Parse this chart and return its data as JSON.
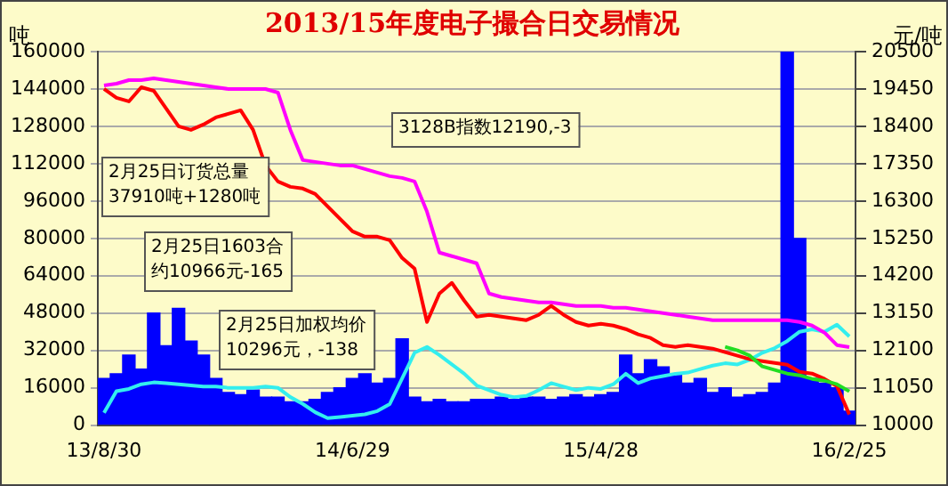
{
  "chart_data": {
    "type": "bar",
    "title": "2013/15年度电子撮合日交易情况",
    "ylabel": "吨",
    "y2label": "元/吨",
    "categories": [
      "13/8/30",
      null,
      null,
      null,
      null,
      null,
      null,
      null,
      null,
      null,
      null,
      null,
      null,
      null,
      null,
      null,
      null,
      null,
      null,
      null,
      "14/6/29",
      null,
      null,
      null,
      null,
      null,
      null,
      null,
      null,
      null,
      null,
      null,
      null,
      null,
      null,
      null,
      null,
      null,
      null,
      null,
      "15/4/28",
      null,
      null,
      null,
      null,
      null,
      null,
      null,
      null,
      null,
      null,
      null,
      null,
      null,
      null,
      null,
      null,
      null,
      null,
      null,
      "16/2/25"
    ],
    "series": [
      {
        "color": "#0000ff",
        "values": [
          20000,
          22000,
          30000,
          24000,
          48000,
          34000,
          50000,
          36000,
          30000,
          20000,
          14000,
          13000,
          15000,
          12000,
          12000,
          10000,
          10000,
          11000,
          14000,
          16000,
          20000,
          22000,
          18000,
          20000,
          37000,
          12000,
          10000,
          11000,
          10000,
          10000,
          11000,
          11000,
          12000,
          11000,
          12000,
          12000,
          11000,
          12000,
          13000,
          12000,
          13000,
          14000,
          30000,
          22000,
          28000,
          25000,
          22000,
          18000,
          20000,
          14000,
          16000,
          12000,
          13000,
          14000,
          18000,
          160000,
          80000,
          20000,
          18000,
          16000,
          6000
        ]
      },
      {
        "type": "line",
        "color": "#33eeee",
        "values": [
          5300,
          14500,
          15500,
          17500,
          18300,
          18000,
          17500,
          17000,
          16500,
          16500,
          16000,
          16000,
          16000,
          16500,
          16000,
          12000,
          9100,
          5500,
          3000,
          3500,
          4000,
          4600,
          6000,
          9000,
          20000,
          31000,
          33500,
          30000,
          26000,
          22000,
          17000,
          15000,
          13000,
          12000,
          12500,
          15000,
          18000,
          16500,
          15000,
          16000,
          15500,
          17500,
          22000,
          18000,
          20000,
          21000,
          22000,
          22500,
          24000,
          25500,
          26500,
          26000,
          28000,
          31000,
          33000,
          36000,
          40000,
          41000,
          40000,
          43000,
          38000
        ]
      },
      {
        "type": "line",
        "axis": "y2",
        "color": "#ff00ff",
        "values": [
          19550,
          19600,
          19700,
          19700,
          19750,
          19700,
          19650,
          19600,
          19550,
          19500,
          19450,
          19450,
          19450,
          19450,
          19350,
          18300,
          17450,
          17400,
          17350,
          17300,
          17300,
          17200,
          17100,
          17000,
          16950,
          16850,
          16000,
          14850,
          14750,
          14650,
          14550,
          13700,
          13600,
          13550,
          13500,
          13450,
          13450,
          13400,
          13350,
          13350,
          13350,
          13300,
          13300,
          13250,
          13200,
          13150,
          13100,
          13050,
          13000,
          12950,
          12950,
          12950,
          12950,
          12950,
          12950,
          12950,
          12900,
          12800,
          12600,
          12250,
          12190
        ]
      },
      {
        "type": "line",
        "axis": "y2",
        "color": "#ff0000",
        "values": [
          19450,
          19200,
          19100,
          19500,
          19400,
          18900,
          18400,
          18300,
          18450,
          18650,
          18750,
          18850,
          18300,
          17300,
          16850,
          16700,
          16650,
          16500,
          16150,
          15800,
          15450,
          15300,
          15300,
          15200,
          14700,
          14400,
          12900,
          13700,
          14000,
          13500,
          13050,
          13100,
          13050,
          13000,
          12950,
          13100,
          13350,
          13100,
          12900,
          12800,
          12850,
          12800,
          12700,
          12550,
          12450,
          12250,
          12200,
          12250,
          12200,
          12150,
          12050,
          11950,
          11850,
          11800,
          11750,
          11700,
          11500,
          11450,
          11300,
          11100,
          10300
        ]
      },
      {
        "type": "line",
        "axis": "y2",
        "color": "#22dd22",
        "values": [
          null,
          null,
          null,
          null,
          null,
          null,
          null,
          null,
          null,
          null,
          null,
          null,
          null,
          null,
          null,
          null,
          null,
          null,
          null,
          null,
          null,
          null,
          null,
          null,
          null,
          null,
          null,
          null,
          null,
          null,
          null,
          null,
          null,
          null,
          null,
          null,
          null,
          null,
          null,
          null,
          null,
          null,
          null,
          null,
          null,
          null,
          null,
          null,
          null,
          null,
          12200,
          12100,
          11950,
          11650,
          11550,
          11450,
          11400,
          11300,
          11250,
          11150,
          10950
        ]
      }
    ],
    "ylim": [
      0,
      160000
    ],
    "yticks": [
      0,
      16000,
      32000,
      48000,
      64000,
      80000,
      96000,
      112000,
      128000,
      144000,
      160000
    ],
    "y2lim": [
      10000,
      20500
    ],
    "y2ticks": [
      10000,
      11050,
      12100,
      13150,
      14200,
      15250,
      16300,
      17350,
      18400,
      19450,
      20500
    ],
    "grid": "y",
    "legend": false,
    "marker": "none",
    "annotations": [
      "2月25日订货总量\n37910吨+1280吨",
      "2月25日1603合约10966元-165",
      "2月25日加权均价\n10296元，-138",
      "3128B指数12190,-3"
    ]
  }
}
